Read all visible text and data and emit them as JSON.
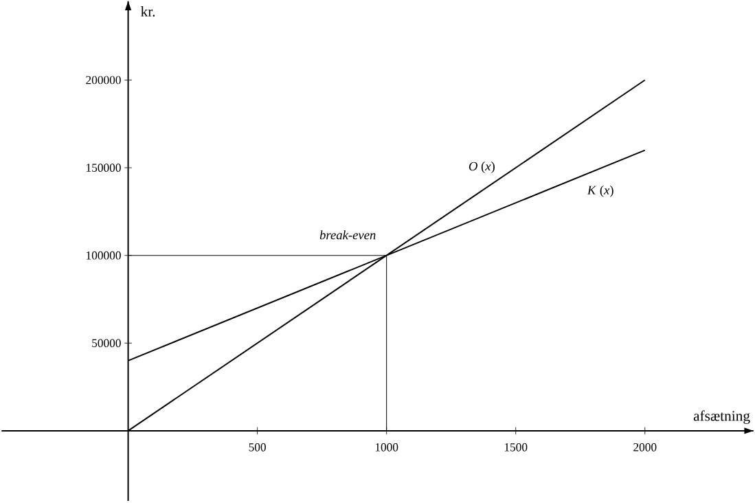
{
  "chart_data": {
    "type": "line",
    "xlabel": "afsætning",
    "ylabel": "kr.",
    "xlim": [
      -490,
      2420
    ],
    "ylim": [
      -40000,
      245000
    ],
    "xticks": [
      500,
      1000,
      1500,
      2000
    ],
    "yticks": [
      50000,
      100000,
      150000,
      200000
    ],
    "x": [
      0,
      2000
    ],
    "series": [
      {
        "name": "*O* (*x*)",
        "color": "#000000",
        "values": [
          0,
          200000
        ]
      },
      {
        "name": "*K* (*x*)",
        "color": "#000000",
        "values": [
          40000,
          160000
        ]
      }
    ],
    "ref_lines": [
      {
        "axis": "y",
        "value": 100000,
        "color": "#000000"
      },
      {
        "axis": "x",
        "value": 1000,
        "color": "#000000"
      }
    ],
    "annotations": [
      {
        "text": "break-even",
        "x": 1000,
        "y": 100000
      }
    ]
  }
}
